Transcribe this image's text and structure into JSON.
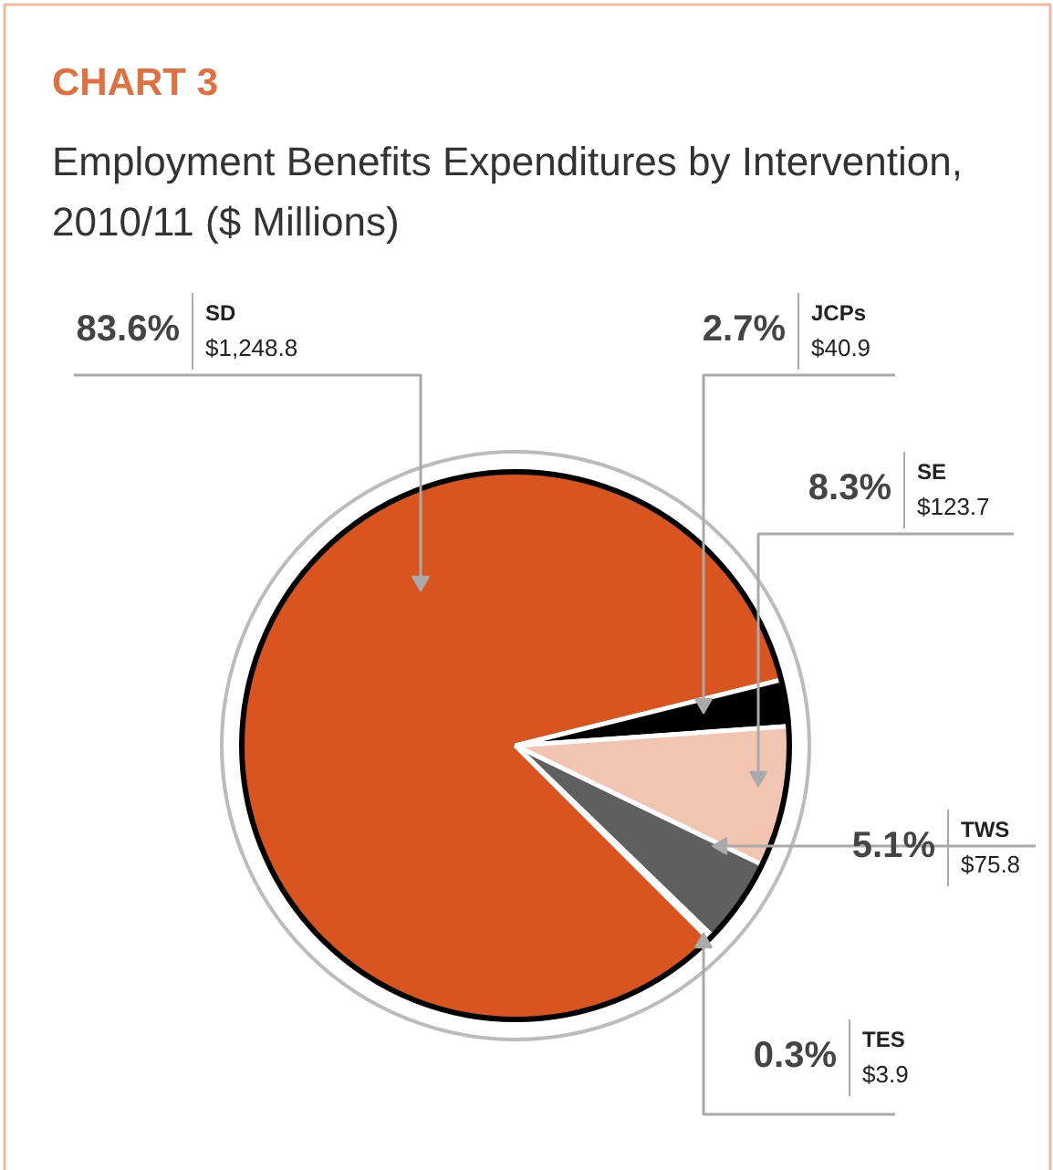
{
  "chart_data": {
    "type": "pie",
    "title": "CHART 3",
    "subtitle": "Employment Benefits Expenditures by Intervention, 2010/11 ($ Millions)",
    "categories": [
      "SD",
      "JCPs",
      "SE",
      "TWS",
      "TES"
    ],
    "values": [
      1248.8,
      40.9,
      123.7,
      75.8,
      3.9
    ],
    "colors": [
      "#d9541e",
      "#000000",
      "#f2c4b2",
      "#5f5f5f",
      "#ffffff"
    ],
    "value_labels": [
      "$1,248.8",
      "$40.9",
      "$123.7",
      "$75.8",
      "$3.9"
    ],
    "annotations": [
      "83.6%",
      "2.7%",
      "8.3%",
      "5.1%",
      "0.3%"
    ]
  }
}
